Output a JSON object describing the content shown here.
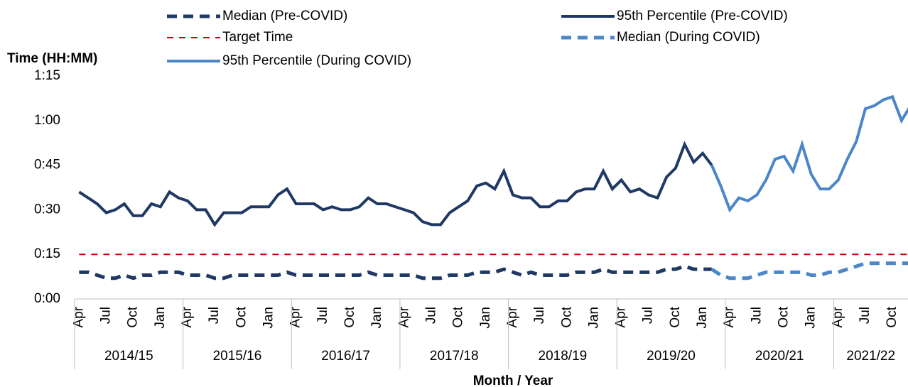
{
  "chart_data": {
    "type": "line",
    "y_label": "Time (HH:MM)",
    "x_label": "Month / Year",
    "categories": [
      "Apr",
      null,
      null,
      "Jul",
      null,
      null,
      "Oct",
      null,
      null,
      "Jan",
      null,
      null,
      "Apr",
      null,
      null,
      "Jul",
      null,
      null,
      "Oct",
      null,
      null,
      "Jan",
      null,
      null,
      "Apr",
      null,
      null,
      "Jul",
      null,
      null,
      "Oct",
      null,
      null,
      "Jan",
      null,
      null,
      "Apr",
      null,
      null,
      "Jul",
      null,
      null,
      "Oct",
      null,
      null,
      "Jan",
      null,
      null,
      "Apr",
      null,
      null,
      "Jul",
      null,
      null,
      "Oct",
      null,
      null,
      "Jan",
      null,
      null,
      "Apr",
      null,
      null,
      "Jul",
      null,
      null,
      "Oct",
      null,
      null,
      "Jan",
      null,
      null,
      "Apr",
      null,
      null,
      "Jul",
      null,
      null,
      "Oct",
      null,
      null,
      "Jan",
      null,
      null,
      "Apr",
      null,
      null,
      "Jul",
      null,
      null,
      "Oct",
      null,
      null
    ],
    "year_groups": [
      "2014/15",
      "2015/16",
      "2016/17",
      "2017/18",
      "2018/19",
      "2019/20",
      "2020/21",
      "2021/22"
    ],
    "ylim": [
      0,
      75
    ],
    "yticks": [
      {
        "value": 0,
        "label": "0:00"
      },
      {
        "value": 15,
        "label": "0:15"
      },
      {
        "value": 30,
        "label": "0:30"
      },
      {
        "value": 45,
        "label": "0:45"
      },
      {
        "value": 60,
        "label": "1:00"
      },
      {
        "value": 75,
        "label": "1:15"
      }
    ],
    "series": [
      {
        "name": "Median (Pre-COVID)",
        "color": "#1f3864",
        "line_style": "dashed",
        "values": [
          9,
          9,
          8,
          7,
          7,
          8,
          7,
          8,
          8,
          9,
          9,
          9,
          8,
          8,
          8,
          7,
          7,
          8,
          8,
          8,
          8,
          8,
          8,
          9,
          8,
          8,
          8,
          8,
          8,
          8,
          8,
          8,
          9,
          8,
          8,
          8,
          8,
          8,
          7,
          7,
          7,
          8,
          8,
          8,
          9,
          9,
          9,
          10,
          9,
          8,
          9,
          8,
          8,
          8,
          8,
          9,
          9,
          9,
          10,
          9,
          9,
          9,
          9,
          9,
          9,
          10,
          10,
          11,
          10,
          10,
          10,
          null,
          null,
          null,
          null,
          null,
          null,
          null,
          null,
          null,
          null,
          null,
          null,
          null,
          null,
          null,
          null,
          null,
          null,
          null,
          null,
          null,
          null
        ]
      },
      {
        "name": "95th Percentile (Pre-COVID)",
        "color": "#1f3864",
        "line_style": "solid",
        "values": [
          36,
          34,
          32,
          29,
          30,
          32,
          28,
          28,
          32,
          31,
          36,
          34,
          33,
          30,
          30,
          25,
          29,
          29,
          29,
          31,
          31,
          31,
          35,
          37,
          32,
          32,
          32,
          30,
          31,
          30,
          30,
          31,
          34,
          32,
          32,
          31,
          30,
          29,
          26,
          25,
          25,
          29,
          31,
          33,
          38,
          39,
          37,
          43,
          35,
          34,
          34,
          31,
          31,
          33,
          33,
          36,
          37,
          37,
          43,
          37,
          40,
          36,
          37,
          35,
          34,
          41,
          44,
          52,
          46,
          49,
          45,
          null,
          null,
          null,
          null,
          null,
          null,
          null,
          null,
          null,
          null,
          null,
          null,
          null,
          null,
          null,
          null,
          null,
          null,
          null,
          null,
          null,
          null
        ]
      },
      {
        "name": "Target Time",
        "color": "#c00000",
        "line_style": "thin-dashed",
        "values": [
          15,
          15,
          15,
          15,
          15,
          15,
          15,
          15,
          15,
          15,
          15,
          15,
          15,
          15,
          15,
          15,
          15,
          15,
          15,
          15,
          15,
          15,
          15,
          15,
          15,
          15,
          15,
          15,
          15,
          15,
          15,
          15,
          15,
          15,
          15,
          15,
          15,
          15,
          15,
          15,
          15,
          15,
          15,
          15,
          15,
          15,
          15,
          15,
          15,
          15,
          15,
          15,
          15,
          15,
          15,
          15,
          15,
          15,
          15,
          15,
          15,
          15,
          15,
          15,
          15,
          15,
          15,
          15,
          15,
          15,
          15,
          15,
          15,
          15,
          15,
          15,
          15,
          15,
          15,
          15,
          15,
          15,
          15,
          15,
          15,
          15,
          15,
          15,
          15,
          15,
          15,
          15,
          15
        ]
      },
      {
        "name": "Median (During COVID)",
        "color": "#4a86c8",
        "line_style": "dashed",
        "values": [
          null,
          null,
          null,
          null,
          null,
          null,
          null,
          null,
          null,
          null,
          null,
          null,
          null,
          null,
          null,
          null,
          null,
          null,
          null,
          null,
          null,
          null,
          null,
          null,
          null,
          null,
          null,
          null,
          null,
          null,
          null,
          null,
          null,
          null,
          null,
          null,
          null,
          null,
          null,
          null,
          null,
          null,
          null,
          null,
          null,
          null,
          null,
          null,
          null,
          null,
          null,
          null,
          null,
          null,
          null,
          null,
          null,
          null,
          null,
          null,
          null,
          null,
          null,
          null,
          null,
          null,
          null,
          null,
          null,
          null,
          10,
          8,
          7,
          7,
          7,
          8,
          9,
          9,
          9,
          9,
          9,
          8,
          8,
          9,
          9,
          10,
          11,
          12,
          12,
          12,
          12,
          12,
          12
        ]
      },
      {
        "name": "95th Percentile (During COVID)",
        "color": "#4a86c8",
        "line_style": "solid",
        "values": [
          null,
          null,
          null,
          null,
          null,
          null,
          null,
          null,
          null,
          null,
          null,
          null,
          null,
          null,
          null,
          null,
          null,
          null,
          null,
          null,
          null,
          null,
          null,
          null,
          null,
          null,
          null,
          null,
          null,
          null,
          null,
          null,
          null,
          null,
          null,
          null,
          null,
          null,
          null,
          null,
          null,
          null,
          null,
          null,
          null,
          null,
          null,
          null,
          null,
          null,
          null,
          null,
          null,
          null,
          null,
          null,
          null,
          null,
          null,
          null,
          null,
          null,
          null,
          null,
          null,
          null,
          null,
          null,
          null,
          null,
          45,
          38,
          30,
          34,
          33,
          35,
          40,
          47,
          48,
          43,
          52,
          42,
          37,
          37,
          40,
          47,
          53,
          64,
          65,
          67,
          68,
          60,
          65
        ]
      }
    ]
  }
}
